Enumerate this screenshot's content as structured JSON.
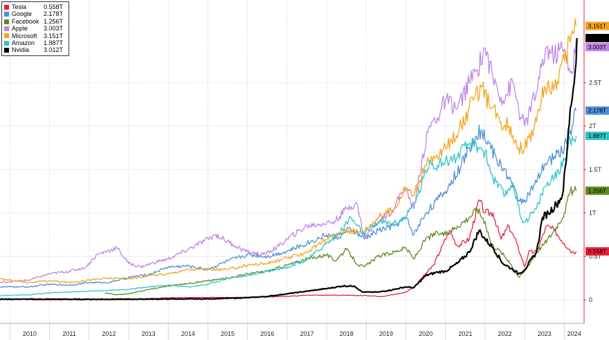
{
  "chart_data": {
    "type": "line",
    "title": "",
    "xlabel": "",
    "ylabel": "",
    "x_start": 2009.75,
    "x_end": 2024.5,
    "ylim": [
      -0.27,
      3.45
    ],
    "x_ticks": [
      "2010",
      "2011",
      "2012",
      "2013",
      "2014",
      "2015",
      "2016",
      "2017",
      "2018",
      "2019",
      "2020",
      "2021",
      "2022",
      "2023",
      "2024"
    ],
    "y_ticks": [
      {
        "value": 0,
        "label": "0"
      },
      {
        "value": 0.5,
        "label": "0.5T"
      },
      {
        "value": 1,
        "label": "1T"
      },
      {
        "value": 1.5,
        "label": "1.5T"
      },
      {
        "value": 2,
        "label": "2T"
      },
      {
        "value": 2.5,
        "label": "2.5T"
      }
    ],
    "series": [
      {
        "name": "Tesla",
        "value_label": "0.558T",
        "color": "#e8213b",
        "points": [
          [
            2010.5,
            0.002
          ],
          [
            2012,
            0.003
          ],
          [
            2013,
            0.004
          ],
          [
            2013.4,
            0.012
          ],
          [
            2014,
            0.025
          ],
          [
            2015,
            0.028
          ],
          [
            2016,
            0.03
          ],
          [
            2017,
            0.04
          ],
          [
            2017.5,
            0.055
          ],
          [
            2018,
            0.055
          ],
          [
            2018.5,
            0.052
          ],
          [
            2019,
            0.05
          ],
          [
            2019.4,
            0.04
          ],
          [
            2019.8,
            0.07
          ],
          [
            2020,
            0.09
          ],
          [
            2020.2,
            0.15
          ],
          [
            2020.5,
            0.3
          ],
          [
            2020.7,
            0.4
          ],
          [
            2020.95,
            0.65
          ],
          [
            2021.1,
            0.8
          ],
          [
            2021.3,
            0.62
          ],
          [
            2021.6,
            0.7
          ],
          [
            2021.85,
            1.15
          ],
          [
            2022,
            1.0
          ],
          [
            2022.2,
            1.0
          ],
          [
            2022.4,
            0.7
          ],
          [
            2022.6,
            0.85
          ],
          [
            2022.8,
            0.65
          ],
          [
            2023,
            0.38
          ],
          [
            2023.1,
            0.55
          ],
          [
            2023.3,
            0.55
          ],
          [
            2023.55,
            0.85
          ],
          [
            2023.75,
            0.8
          ],
          [
            2024,
            0.65
          ],
          [
            2024.2,
            0.55
          ],
          [
            2024.3,
            0.558
          ]
        ]
      },
      {
        "name": "Google",
        "value_label": "2.178T",
        "color": "#4a90d9",
        "points": [
          [
            2009.75,
            0.15
          ],
          [
            2010.5,
            0.15
          ],
          [
            2011,
            0.18
          ],
          [
            2011.5,
            0.17
          ],
          [
            2012,
            0.2
          ],
          [
            2012.5,
            0.2
          ],
          [
            2013,
            0.26
          ],
          [
            2013.5,
            0.29
          ],
          [
            2014,
            0.38
          ],
          [
            2014.5,
            0.39
          ],
          [
            2015,
            0.35
          ],
          [
            2015.5,
            0.45
          ],
          [
            2016,
            0.52
          ],
          [
            2016.5,
            0.5
          ],
          [
            2017,
            0.56
          ],
          [
            2017.5,
            0.65
          ],
          [
            2018,
            0.75
          ],
          [
            2018.3,
            0.72
          ],
          [
            2018.6,
            0.82
          ],
          [
            2018.95,
            0.7
          ],
          [
            2019.3,
            0.8
          ],
          [
            2019.7,
            0.85
          ],
          [
            2020,
            0.95
          ],
          [
            2020.2,
            0.75
          ],
          [
            2020.5,
            1.0
          ],
          [
            2020.8,
            1.15
          ],
          [
            2021,
            1.25
          ],
          [
            2021.4,
            1.55
          ],
          [
            2021.7,
            1.85
          ],
          [
            2021.9,
            1.95
          ],
          [
            2022.1,
            1.8
          ],
          [
            2022.3,
            1.6
          ],
          [
            2022.5,
            1.5
          ],
          [
            2022.7,
            1.3
          ],
          [
            2022.85,
            1.15
          ],
          [
            2023,
            1.15
          ],
          [
            2023.3,
            1.35
          ],
          [
            2023.5,
            1.55
          ],
          [
            2023.75,
            1.65
          ],
          [
            2024,
            1.75
          ],
          [
            2024.2,
            2.0
          ],
          [
            2024.3,
            2.178
          ]
        ]
      },
      {
        "name": "Facebook",
        "value_label": "1.256T",
        "color": "#5e8a1f",
        "points": [
          [
            2012.4,
            0.08
          ],
          [
            2012.7,
            0.06
          ],
          [
            2013,
            0.07
          ],
          [
            2013.5,
            0.12
          ],
          [
            2014,
            0.16
          ],
          [
            2014.5,
            0.19
          ],
          [
            2015,
            0.22
          ],
          [
            2015.5,
            0.25
          ],
          [
            2016,
            0.3
          ],
          [
            2016.5,
            0.33
          ],
          [
            2017,
            0.4
          ],
          [
            2017.5,
            0.47
          ],
          [
            2018,
            0.52
          ],
          [
            2018.2,
            0.45
          ],
          [
            2018.5,
            0.58
          ],
          [
            2018.8,
            0.4
          ],
          [
            2018.95,
            0.38
          ],
          [
            2019.3,
            0.5
          ],
          [
            2019.7,
            0.55
          ],
          [
            2020,
            0.6
          ],
          [
            2020.2,
            0.47
          ],
          [
            2020.5,
            0.7
          ],
          [
            2020.8,
            0.77
          ],
          [
            2021,
            0.75
          ],
          [
            2021.3,
            0.85
          ],
          [
            2021.6,
            0.95
          ],
          [
            2021.8,
            1.05
          ],
          [
            2022,
            0.9
          ],
          [
            2022.15,
            0.65
          ],
          [
            2022.4,
            0.55
          ],
          [
            2022.6,
            0.45
          ],
          [
            2022.85,
            0.26
          ],
          [
            2023,
            0.33
          ],
          [
            2023.3,
            0.55
          ],
          [
            2023.5,
            0.65
          ],
          [
            2023.75,
            0.8
          ],
          [
            2024,
            1.0
          ],
          [
            2024.15,
            1.25
          ],
          [
            2024.3,
            1.256
          ]
        ]
      },
      {
        "name": "Apple",
        "value_label": "3.003T",
        "color": "#c084e6",
        "points": [
          [
            2009.75,
            0.2
          ],
          [
            2010.5,
            0.23
          ],
          [
            2011,
            0.3
          ],
          [
            2011.5,
            0.33
          ],
          [
            2011.9,
            0.37
          ],
          [
            2012.2,
            0.52
          ],
          [
            2012.7,
            0.6
          ],
          [
            2013,
            0.42
          ],
          [
            2013.3,
            0.38
          ],
          [
            2013.8,
            0.45
          ],
          [
            2014,
            0.47
          ],
          [
            2014.5,
            0.58
          ],
          [
            2015,
            0.7
          ],
          [
            2015.2,
            0.75
          ],
          [
            2015.7,
            0.62
          ],
          [
            2016,
            0.55
          ],
          [
            2016.4,
            0.52
          ],
          [
            2016.8,
            0.62
          ],
          [
            2017,
            0.7
          ],
          [
            2017.5,
            0.85
          ],
          [
            2017.9,
            0.88
          ],
          [
            2018.2,
            0.9
          ],
          [
            2018.5,
            1.05
          ],
          [
            2018.75,
            1.12
          ],
          [
            2018.95,
            0.72
          ],
          [
            2019.3,
            0.9
          ],
          [
            2019.7,
            1.05
          ],
          [
            2019.95,
            1.3
          ],
          [
            2020.2,
            1.05
          ],
          [
            2020.4,
            1.6
          ],
          [
            2020.6,
            2.0
          ],
          [
            2020.8,
            2.1
          ],
          [
            2021,
            2.3
          ],
          [
            2021.3,
            2.2
          ],
          [
            2021.6,
            2.5
          ],
          [
            2021.8,
            2.65
          ],
          [
            2022,
            2.9
          ],
          [
            2022.2,
            2.55
          ],
          [
            2022.45,
            2.3
          ],
          [
            2022.7,
            2.5
          ],
          [
            2022.9,
            2.1
          ],
          [
            2023,
            2.0
          ],
          [
            2023.3,
            2.4
          ],
          [
            2023.55,
            2.9
          ],
          [
            2023.75,
            2.8
          ],
          [
            2023.9,
            2.9
          ],
          [
            2024.05,
            2.8
          ],
          [
            2024.2,
            2.6
          ],
          [
            2024.3,
            3.003
          ]
        ]
      },
      {
        "name": "Microsoft",
        "value_label": "3.151T",
        "color": "#f5a31a",
        "points": [
          [
            2009.75,
            0.24
          ],
          [
            2010.5,
            0.2
          ],
          [
            2011,
            0.22
          ],
          [
            2011.5,
            0.2
          ],
          [
            2012,
            0.23
          ],
          [
            2012.5,
            0.25
          ],
          [
            2013,
            0.24
          ],
          [
            2013.5,
            0.28
          ],
          [
            2014,
            0.3
          ],
          [
            2014.5,
            0.35
          ],
          [
            2015,
            0.35
          ],
          [
            2015.5,
            0.35
          ],
          [
            2016,
            0.4
          ],
          [
            2016.5,
            0.42
          ],
          [
            2017,
            0.48
          ],
          [
            2017.5,
            0.55
          ],
          [
            2018,
            0.7
          ],
          [
            2018.5,
            0.8
          ],
          [
            2018.9,
            0.78
          ],
          [
            2019.3,
            0.95
          ],
          [
            2019.7,
            1.05
          ],
          [
            2020,
            1.3
          ],
          [
            2020.2,
            1.2
          ],
          [
            2020.5,
            1.55
          ],
          [
            2020.8,
            1.65
          ],
          [
            2021,
            1.75
          ],
          [
            2021.4,
            2.0
          ],
          [
            2021.7,
            2.3
          ],
          [
            2021.9,
            2.45
          ],
          [
            2022.1,
            2.25
          ],
          [
            2022.4,
            2.05
          ],
          [
            2022.6,
            2.0
          ],
          [
            2022.85,
            1.75
          ],
          [
            2023,
            1.75
          ],
          [
            2023.3,
            2.05
          ],
          [
            2023.5,
            2.45
          ],
          [
            2023.75,
            2.45
          ],
          [
            2024,
            2.75
          ],
          [
            2024.2,
            3.1
          ],
          [
            2024.3,
            3.151
          ]
        ]
      },
      {
        "name": "Amazon",
        "value_label": "1.887T",
        "color": "#2fc4c9",
        "points": [
          [
            2009.75,
            0.05
          ],
          [
            2010.5,
            0.06
          ],
          [
            2011,
            0.08
          ],
          [
            2011.5,
            0.09
          ],
          [
            2012,
            0.1
          ],
          [
            2012.5,
            0.11
          ],
          [
            2013,
            0.12
          ],
          [
            2013.5,
            0.15
          ],
          [
            2014,
            0.17
          ],
          [
            2014.5,
            0.15
          ],
          [
            2015,
            0.18
          ],
          [
            2015.5,
            0.25
          ],
          [
            2016,
            0.28
          ],
          [
            2016.5,
            0.33
          ],
          [
            2017,
            0.38
          ],
          [
            2017.5,
            0.46
          ],
          [
            2018,
            0.65
          ],
          [
            2018.3,
            0.75
          ],
          [
            2018.6,
            0.95
          ],
          [
            2018.95,
            0.75
          ],
          [
            2019.3,
            0.9
          ],
          [
            2019.7,
            0.88
          ],
          [
            2020,
            0.95
          ],
          [
            2020.3,
            1.2
          ],
          [
            2020.6,
            1.6
          ],
          [
            2020.8,
            1.55
          ],
          [
            2021,
            1.6
          ],
          [
            2021.3,
            1.65
          ],
          [
            2021.6,
            1.8
          ],
          [
            2021.9,
            1.75
          ],
          [
            2022,
            1.7
          ],
          [
            2022.2,
            1.4
          ],
          [
            2022.5,
            1.2
          ],
          [
            2022.7,
            1.35
          ],
          [
            2022.9,
            0.95
          ],
          [
            2023,
            0.9
          ],
          [
            2023.3,
            1.05
          ],
          [
            2023.5,
            1.3
          ],
          [
            2023.75,
            1.4
          ],
          [
            2024,
            1.6
          ],
          [
            2024.15,
            1.85
          ],
          [
            2024.3,
            1.887
          ]
        ]
      },
      {
        "name": "Nvidia",
        "value_label": "3.012T",
        "color": "#000000",
        "points": [
          [
            2009.75,
            0.008
          ],
          [
            2011,
            0.008
          ],
          [
            2012,
            0.007
          ],
          [
            2013,
            0.008
          ],
          [
            2014,
            0.01
          ],
          [
            2015,
            0.012
          ],
          [
            2016,
            0.025
          ],
          [
            2016.5,
            0.04
          ],
          [
            2017,
            0.07
          ],
          [
            2017.5,
            0.1
          ],
          [
            2018,
            0.13
          ],
          [
            2018.4,
            0.16
          ],
          [
            2018.7,
            0.16
          ],
          [
            2018.9,
            0.09
          ],
          [
            2019.3,
            0.09
          ],
          [
            2019.7,
            0.12
          ],
          [
            2020,
            0.15
          ],
          [
            2020.2,
            0.14
          ],
          [
            2020.5,
            0.28
          ],
          [
            2020.8,
            0.32
          ],
          [
            2021,
            0.33
          ],
          [
            2021.3,
            0.42
          ],
          [
            2021.6,
            0.55
          ],
          [
            2021.85,
            0.8
          ],
          [
            2022,
            0.7
          ],
          [
            2022.2,
            0.6
          ],
          [
            2022.45,
            0.42
          ],
          [
            2022.7,
            0.35
          ],
          [
            2022.85,
            0.3
          ],
          [
            2023,
            0.35
          ],
          [
            2023.3,
            0.55
          ],
          [
            2023.45,
            0.95
          ],
          [
            2023.6,
            1.0
          ],
          [
            2023.8,
            1.1
          ],
          [
            2023.95,
            1.2
          ],
          [
            2024.05,
            1.6
          ],
          [
            2024.15,
            2.2
          ],
          [
            2024.25,
            2.5
          ],
          [
            2024.32,
            3.012
          ]
        ]
      }
    ],
    "legend_position": "top-left",
    "grid": "dotted"
  },
  "colors": {
    "background": "#ffffff",
    "grid": "#bbbbbb",
    "right_axis": "#e8213b"
  }
}
